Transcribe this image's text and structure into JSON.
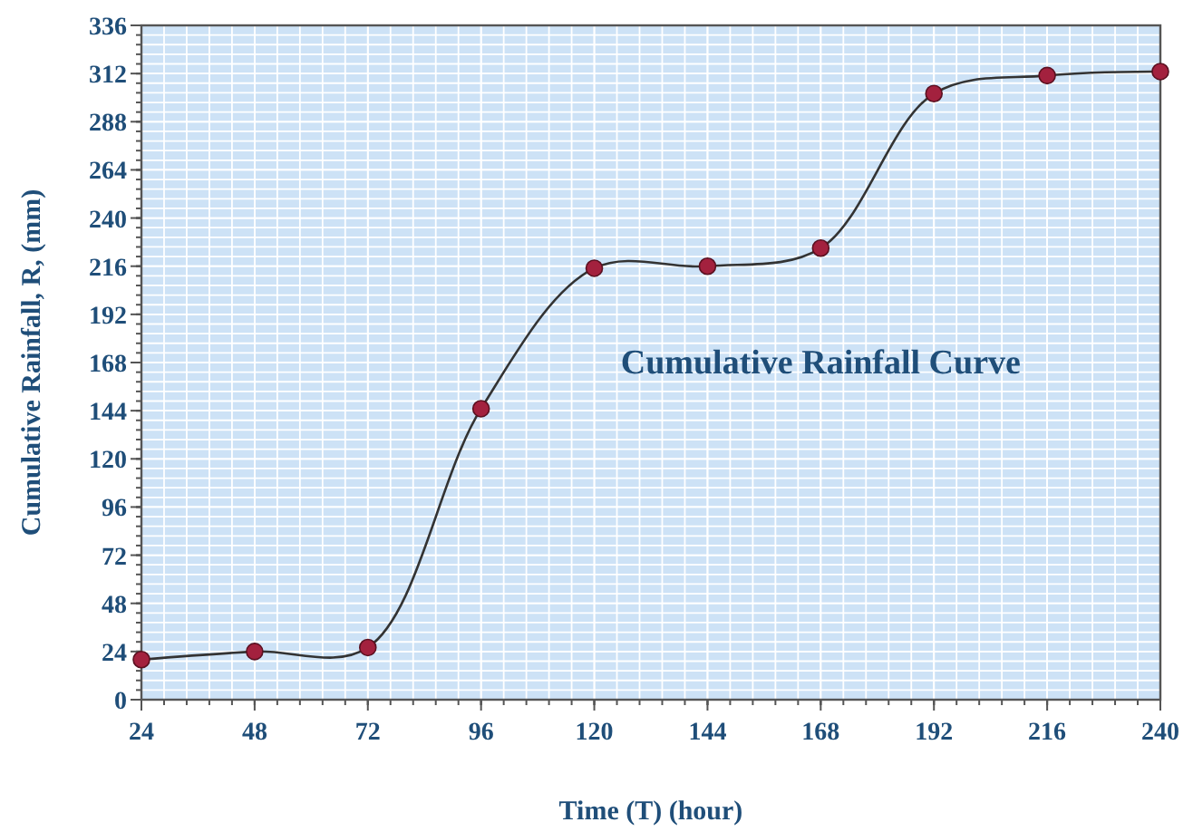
{
  "chart_data": {
    "type": "line",
    "title": "Cumulative Rainfall Curve",
    "xlabel": "Time (T) (hour)",
    "ylabel": "Cumulative Rainfall, R, (mm)",
    "x": [
      24,
      48,
      72,
      96,
      120,
      144,
      168,
      192,
      216,
      240
    ],
    "series": [
      {
        "color": "#333333",
        "values": [
          20,
          24,
          26,
          145,
          215,
          216,
          225,
          302,
          311,
          313
        ]
      }
    ],
    "xlim": [
      24,
      240
    ],
    "xticks": [
      24,
      48,
      72,
      96,
      120,
      144,
      168,
      192,
      216,
      240
    ],
    "ylim": [
      0,
      336
    ],
    "yticks": [
      0,
      24,
      48,
      72,
      96,
      120,
      144,
      168,
      192,
      216,
      240,
      264,
      288,
      312,
      336
    ],
    "grid": true,
    "marker": "circle",
    "line_style": "solid"
  }
}
